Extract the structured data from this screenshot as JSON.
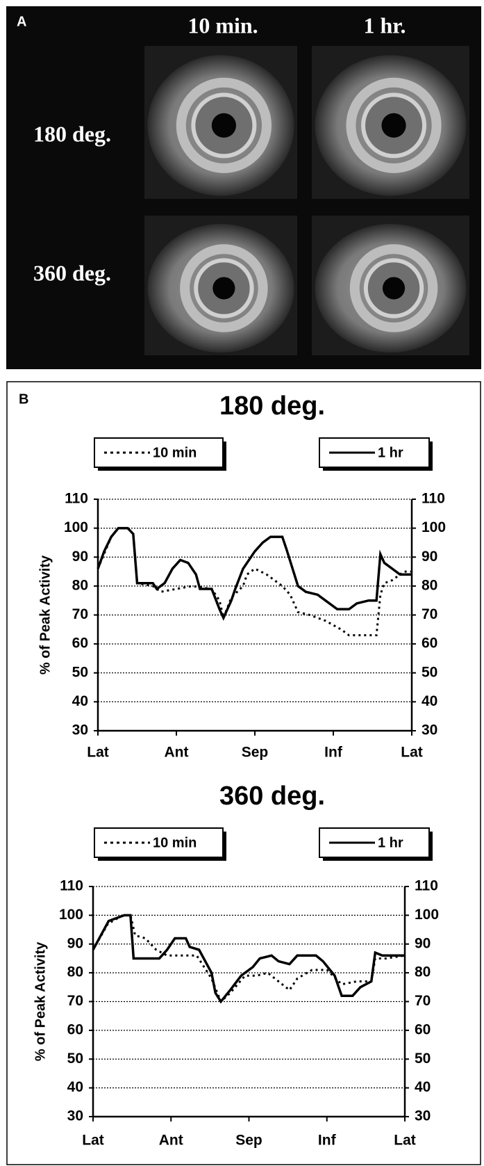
{
  "panel_a": {
    "label": "A",
    "columns": [
      "10 min.",
      "1 hr."
    ],
    "rows": [
      "180 deg.",
      "360 deg."
    ]
  },
  "panel_b": {
    "label": "B"
  },
  "chart_data": [
    {
      "type": "line",
      "title": "180 deg.",
      "y_label": "% of Peak Activity",
      "grid": true,
      "xlim": [
        0,
        40
      ],
      "xticks": [
        {
          "value": 0,
          "label": "Lat"
        },
        {
          "value": 10,
          "label": "Ant"
        },
        {
          "value": 20,
          "label": "Sep"
        },
        {
          "value": 30,
          "label": "Inf"
        },
        {
          "value": 40,
          "label": "Lat"
        }
      ],
      "ylim": [
        30,
        110
      ],
      "yticks": [
        30,
        40,
        50,
        60,
        70,
        80,
        90,
        100,
        110
      ],
      "series": [
        {
          "name": "10 min",
          "color": "#000",
          "style": "dotted",
          "x": [
            0,
            1.7,
            2.6,
            3.8,
            4.5,
            5,
            7,
            8,
            10,
            12,
            14.5,
            15.5,
            16,
            17,
            18.5,
            19,
            20,
            21.5,
            23.5,
            24.5,
            25.5,
            27,
            29,
            31,
            32,
            35.5,
            36,
            36.5,
            37.5,
            39,
            40
          ],
          "values": [
            86,
            97,
            100,
            100,
            98,
            81,
            80,
            78,
            79,
            80,
            79,
            75,
            69,
            76,
            80,
            84,
            86,
            84,
            80,
            77,
            71,
            70,
            68,
            65,
            63,
            63,
            77,
            81,
            82,
            85,
            85
          ]
        },
        {
          "name": "1 hr",
          "color": "#000",
          "style": "solid",
          "x": [
            0,
            0.8,
            1.7,
            2.6,
            3.8,
            4.5,
            5,
            7,
            7.5,
            8.5,
            9.5,
            10.5,
            11.5,
            12.5,
            13,
            14.5,
            15.5,
            16,
            17,
            17.5,
            18.5,
            20,
            21,
            22,
            23.5,
            24,
            25.5,
            26.5,
            28,
            29,
            30.5,
            32,
            33,
            34.5,
            35.5,
            36,
            36.5,
            37.5,
            38.5,
            40
          ],
          "values": [
            86,
            92,
            97,
            100,
            100,
            98,
            81,
            81,
            79,
            81,
            86,
            89,
            88,
            84,
            79,
            79,
            72,
            69,
            75,
            79,
            86,
            92,
            95,
            97,
            97,
            93,
            80,
            78,
            77,
            75,
            72,
            72,
            74,
            75,
            75,
            91,
            88,
            86,
            84,
            84
          ]
        }
      ]
    },
    {
      "type": "line",
      "title": "360 deg.",
      "y_label": "% of Peak Activity",
      "grid": true,
      "xlim": [
        0,
        40
      ],
      "xticks": [
        {
          "value": 0,
          "label": "Lat"
        },
        {
          "value": 10,
          "label": "Ant"
        },
        {
          "value": 20,
          "label": "Sep"
        },
        {
          "value": 30,
          "label": "Inf"
        },
        {
          "value": 40,
          "label": "Lat"
        }
      ],
      "ylim": [
        30,
        110
      ],
      "yticks": [
        30,
        40,
        50,
        60,
        70,
        80,
        90,
        100,
        110
      ],
      "series": [
        {
          "name": "10 min",
          "color": "#000",
          "style": "dotted",
          "x": [
            0,
            1.9,
            3.8,
            4.8,
            5.4,
            6.7,
            8.1,
            9.5,
            11.4,
            13.3,
            15.2,
            16.4,
            17.6,
            19.5,
            21,
            22.4,
            23.8,
            25.2,
            26.2,
            28.1,
            30,
            31.9,
            33.8,
            35.7,
            36.2,
            37.6,
            40
          ],
          "values": [
            88,
            97,
            100,
            100,
            93,
            92,
            88,
            86,
            86,
            86,
            78,
            70,
            73,
            79,
            79,
            80,
            77,
            74,
            78,
            81,
            81,
            76,
            77,
            77,
            85,
            85,
            86
          ]
        },
        {
          "name": "1 hr",
          "color": "#000",
          "style": "solid",
          "x": [
            0,
            1,
            2,
            3,
            4,
            4.8,
            5.2,
            7,
            8.5,
            9.5,
            10.5,
            11.9,
            12.4,
            13.6,
            15.2,
            15.7,
            16.4,
            17.6,
            19,
            20.5,
            21.4,
            22.9,
            23.8,
            25.2,
            26.2,
            28.6,
            29.5,
            31,
            31.9,
            33.3,
            34.3,
            35.7,
            36.2,
            37.1,
            40
          ],
          "values": [
            88,
            93,
            98,
            99,
            100,
            100,
            85,
            85,
            85,
            88,
            92,
            92,
            89,
            88,
            80,
            73,
            70,
            74,
            79,
            82,
            85,
            86,
            84,
            83,
            86,
            86,
            84,
            79,
            72,
            72,
            75,
            77,
            87,
            86,
            86
          ]
        }
      ]
    }
  ]
}
